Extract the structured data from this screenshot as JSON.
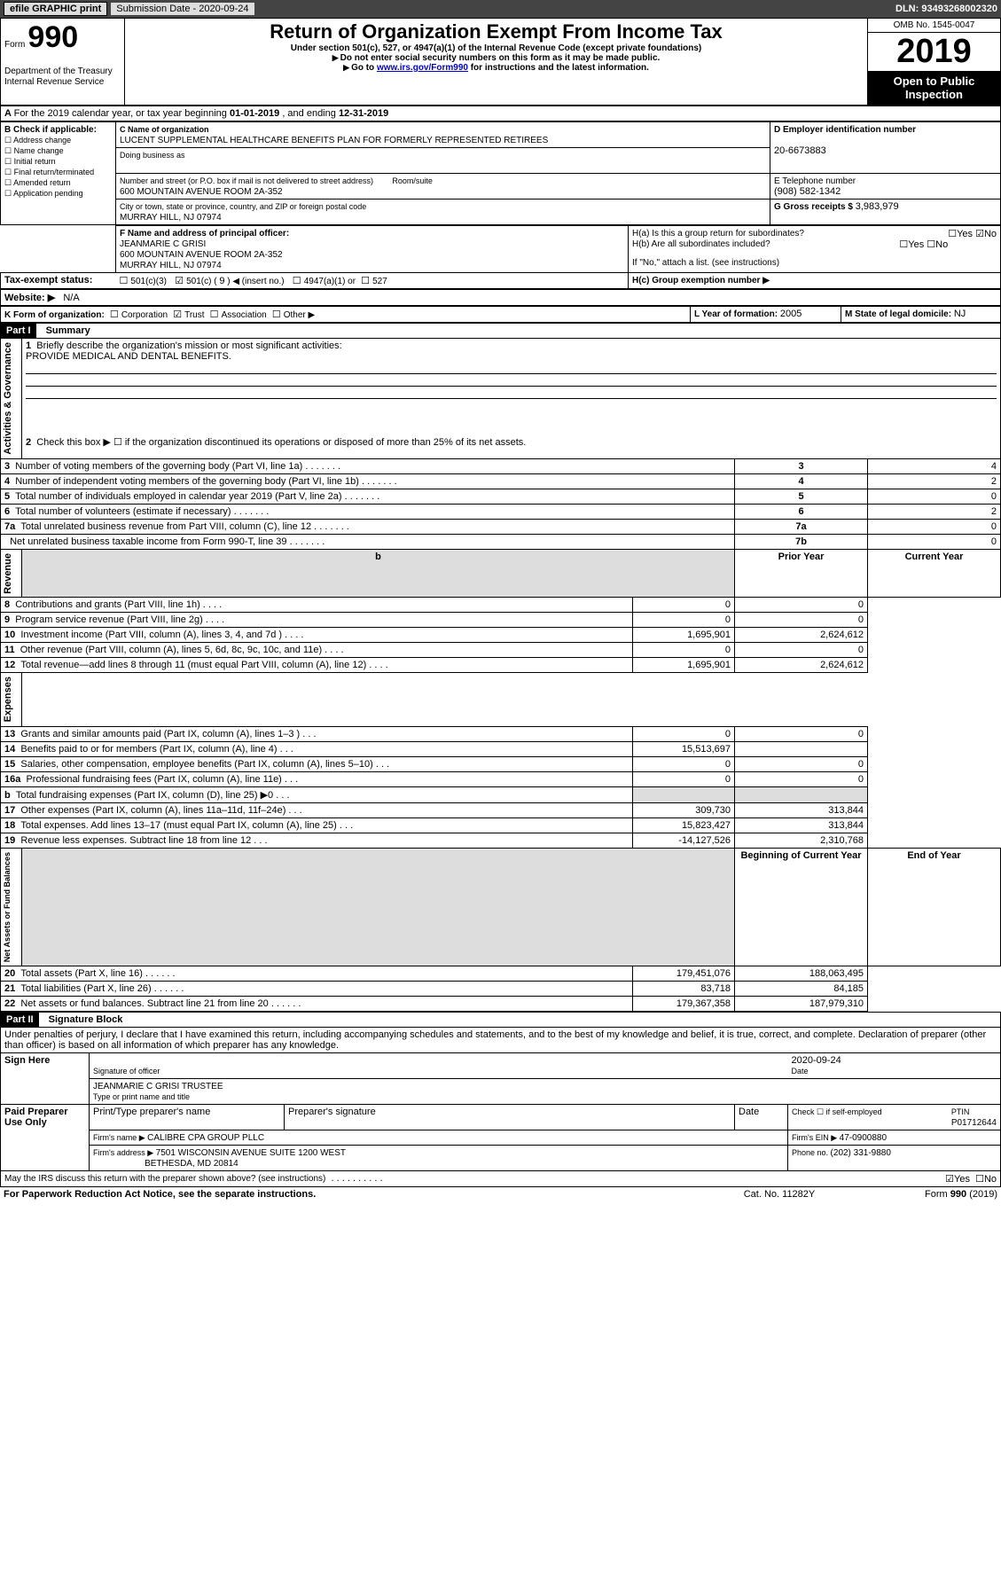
{
  "topbar": {
    "efile": "efile GRAPHIC print",
    "subdate_label": "Submission Date - ",
    "subdate": "2020-09-24",
    "dln": "DLN: 93493268002320"
  },
  "header": {
    "form_label": "Form",
    "form_no": "990",
    "title": "Return of Organization Exempt From Income Tax",
    "subtitle": "Under section 501(c), 527, or 4947(a)(1) of the Internal Revenue Code (except private foundations)",
    "note1": "Do not enter social security numbers on this form as it may be made public.",
    "note2_prefix": "Go to ",
    "note2_link": "www.irs.gov/Form990",
    "note2_suffix": " for instructions and the latest information.",
    "dept": "Department of the Treasury",
    "irs": "Internal Revenue Service",
    "omb": "OMB No. 1545-0047",
    "year": "2019",
    "inspection": "Open to Public Inspection"
  },
  "A": {
    "text": "For the 2019 calendar year, or tax year beginning ",
    "begin": "01-01-2019",
    "mid": " , and ending ",
    "end": "12-31-2019"
  },
  "B": {
    "label": "B Check if applicable:",
    "opts": [
      "Address change",
      "Name change",
      "Initial return",
      "Final return/terminated",
      "Amended return",
      "Application pending"
    ]
  },
  "C": {
    "name_label": "C Name of organization",
    "name": "LUCENT SUPPLEMENTAL HEALTHCARE BENEFITS PLAN FOR FORMERLY REPRESENTED RETIREES",
    "dba_label": "Doing business as",
    "addr_label": "Number and street (or P.O. box if mail is not delivered to street address)",
    "room_label": "Room/suite",
    "addr": "600 MOUNTAIN AVENUE ROOM 2A-352",
    "city_label": "City or town, state or province, country, and ZIP or foreign postal code",
    "city": "MURRAY HILL, NJ  07974"
  },
  "D": {
    "label": "D Employer identification number",
    "ein": "20-6673883"
  },
  "E": {
    "label": "E Telephone number",
    "phone": "(908) 582-1342"
  },
  "G": {
    "label": "G Gross receipts $ ",
    "amount": "3,983,979"
  },
  "F": {
    "label": "F  Name and address of principal officer:",
    "name": "JEANMARIE C GRISI",
    "addr1": "600 MOUNTAIN AVENUE ROOM 2A-352",
    "addr2": "MURRAY HILL, NJ  07974"
  },
  "H": {
    "a_label": "H(a)  Is this a group return for subordinates?",
    "yes": "Yes",
    "no": "No",
    "b_label": "H(b)  Are all subordinates included?",
    "b_note": "If \"No,\" attach a list. (see instructions)",
    "c_label": "H(c)  Group exemption number ▶"
  },
  "I": {
    "label": "Tax-exempt status:",
    "c3": "501(c)(3)",
    "c_open": "501(c) ( ",
    "c_num": "9",
    "c_close": " ) ◀ (insert no.)",
    "a1": "4947(a)(1) or",
    "s527": "527"
  },
  "J": {
    "label": "Website: ▶",
    "value": "N/A"
  },
  "K": {
    "label": "K Form of organization:",
    "corp": "Corporation",
    "trust": "Trust",
    "assoc": "Association",
    "other": "Other ▶"
  },
  "L": {
    "label": "L Year of formation: ",
    "value": "2005"
  },
  "M": {
    "label": "M State of legal domicile: ",
    "value": "NJ"
  },
  "part1": {
    "title": "Part I",
    "name": "Summary",
    "q1": "Briefly describe the organization's mission or most significant activities:",
    "mission": "PROVIDE MEDICAL AND DENTAL BENEFITS.",
    "q2": "Check this box ▶ ☐  if the organization discontinued its operations or disposed of more than 25% of its net assets.",
    "rows_gov": [
      {
        "n": "3",
        "t": "Number of voting members of the governing body (Part VI, line 1a)",
        "r": "3",
        "v": "4"
      },
      {
        "n": "4",
        "t": "Number of independent voting members of the governing body (Part VI, line 1b)",
        "r": "4",
        "v": "2"
      },
      {
        "n": "5",
        "t": "Total number of individuals employed in calendar year 2019 (Part V, line 2a)",
        "r": "5",
        "v": "0"
      },
      {
        "n": "6",
        "t": "Total number of volunteers (estimate if necessary)",
        "r": "6",
        "v": "2"
      },
      {
        "n": "7a",
        "t": "Total unrelated business revenue from Part VIII, column (C), line 12",
        "r": "7a",
        "v": "0"
      },
      {
        "n": "",
        "t": "Net unrelated business taxable income from Form 990-T, line 39",
        "r": "7b",
        "v": "0"
      }
    ],
    "col_prior": "Prior Year",
    "col_current": "Current Year",
    "rev": [
      {
        "n": "8",
        "t": "Contributions and grants (Part VIII, line 1h)",
        "p": "0",
        "c": "0"
      },
      {
        "n": "9",
        "t": "Program service revenue (Part VIII, line 2g)",
        "p": "0",
        "c": "0"
      },
      {
        "n": "10",
        "t": "Investment income (Part VIII, column (A), lines 3, 4, and 7d )",
        "p": "1,695,901",
        "c": "2,624,612"
      },
      {
        "n": "11",
        "t": "Other revenue (Part VIII, column (A), lines 5, 6d, 8c, 9c, 10c, and 11e)",
        "p": "0",
        "c": "0"
      },
      {
        "n": "12",
        "t": "Total revenue—add lines 8 through 11 (must equal Part VIII, column (A), line 12)",
        "p": "1,695,901",
        "c": "2,624,612"
      }
    ],
    "exp": [
      {
        "n": "13",
        "t": "Grants and similar amounts paid (Part IX, column (A), lines 1–3 )",
        "p": "0",
        "c": "0"
      },
      {
        "n": "14",
        "t": "Benefits paid to or for members (Part IX, column (A), line 4)",
        "p": "15,513,697",
        "c": ""
      },
      {
        "n": "15",
        "t": "Salaries, other compensation, employee benefits (Part IX, column (A), lines 5–10)",
        "p": "0",
        "c": "0"
      },
      {
        "n": "16a",
        "t": "Professional fundraising fees (Part IX, column (A), line 11e)",
        "p": "0",
        "c": "0"
      },
      {
        "n": "b",
        "t": "Total fundraising expenses (Part IX, column (D), line 25) ▶0",
        "p": "",
        "c": "",
        "gray": true
      },
      {
        "n": "17",
        "t": "Other expenses (Part IX, column (A), lines 11a–11d, 11f–24e)",
        "p": "309,730",
        "c": "313,844"
      },
      {
        "n": "18",
        "t": "Total expenses. Add lines 13–17 (must equal Part IX, column (A), line 25)",
        "p": "15,823,427",
        "c": "313,844"
      },
      {
        "n": "19",
        "t": "Revenue less expenses. Subtract line 18 from line 12",
        "p": "-14,127,526",
        "c": "2,310,768"
      }
    ],
    "col_boy": "Beginning of Current Year",
    "col_eoy": "End of Year",
    "net": [
      {
        "n": "20",
        "t": "Total assets (Part X, line 16)",
        "p": "179,451,076",
        "c": "188,063,495"
      },
      {
        "n": "21",
        "t": "Total liabilities (Part X, line 26)",
        "p": "83,718",
        "c": "84,185"
      },
      {
        "n": "22",
        "t": "Net assets or fund balances. Subtract line 21 from line 20",
        "p": "179,367,358",
        "c": "187,979,310"
      }
    ],
    "side_gov": "Activities & Governance",
    "side_rev": "Revenue",
    "side_exp": "Expenses",
    "side_net": "Net Assets or Fund Balances"
  },
  "part2": {
    "title": "Part II",
    "name": "Signature Block",
    "perjury": "Under penalties of perjury, I declare that I have examined this return, including accompanying schedules and statements, and to the best of my knowledge and belief, it is true, correct, and complete. Declaration of preparer (other than officer) is based on all information of which preparer has any knowledge.",
    "sign_here": "Sign Here",
    "sig_officer": "Signature of officer",
    "sig_date": "Date",
    "sig_date_val": "2020-09-24",
    "officer_name": "JEANMARIE C GRISI TRUSTEE",
    "type_name": "Type or print name and title",
    "paid": "Paid Preparer Use Only",
    "prep_name_label": "Print/Type preparer's name",
    "prep_sig_label": "Preparer's signature",
    "prep_date": "Date",
    "check_self": "Check ☐ if self-employed",
    "ptin_label": "PTIN",
    "ptin": "P01712644",
    "firm_name_label": "Firm's name    ▶ ",
    "firm_name": "CALIBRE CPA GROUP PLLC",
    "firm_ein_label": "Firm's EIN ▶ ",
    "firm_ein": "47-0900880",
    "firm_addr_label": "Firm's address ▶ ",
    "firm_addr": "7501 WISCONSIN AVENUE SUITE 1200 WEST",
    "firm_city": "BETHESDA, MD  20814",
    "phone_label": "Phone no. ",
    "phone": "(202) 331-9880",
    "discuss": "May the IRS discuss this return with the preparer shown above? (see instructions)",
    "paperwork": "For Paperwork Reduction Act Notice, see the separate instructions.",
    "cat": "Cat. No. 11282Y",
    "formno": "Form 990 (2019)"
  }
}
